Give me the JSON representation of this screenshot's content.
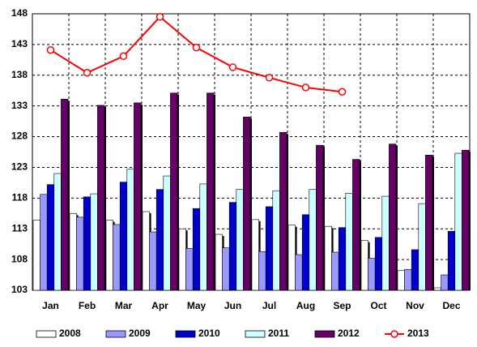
{
  "chart_data": {
    "type": "bar",
    "categories": [
      "Jan",
      "Feb",
      "Mar",
      "Apr",
      "May",
      "Jun",
      "Jul",
      "Aug",
      "Sep",
      "Oct",
      "Nov",
      "Dec"
    ],
    "series": [
      {
        "name": "2008",
        "color": "#ffffff",
        "values": [
          114.4,
          115.5,
          114.4,
          115.8,
          113.0,
          112.1,
          114.5,
          113.6,
          113.4,
          111.1,
          106.2,
          103.4
        ]
      },
      {
        "name": "2009",
        "color": "#9999ff",
        "values": [
          118.6,
          114.9,
          113.7,
          112.5,
          109.8,
          109.9,
          109.3,
          108.8,
          109.2,
          108.2,
          106.4,
          105.5
        ]
      },
      {
        "name": "2010",
        "color": "#0000cc",
        "values": [
          120.2,
          118.2,
          120.6,
          119.4,
          116.3,
          117.3,
          116.6,
          115.3,
          113.2,
          111.6,
          109.6,
          112.6
        ]
      },
      {
        "name": "2011",
        "color": "#ccffff",
        "values": [
          122.0,
          118.7,
          122.7,
          121.6,
          120.3,
          119.4,
          119.2,
          119.4,
          118.8,
          118.3,
          117.1,
          125.3
        ]
      },
      {
        "name": "2012",
        "color": "#660066",
        "values": [
          134.1,
          133.1,
          133.5,
          135.1,
          135.1,
          131.2,
          128.7,
          126.6,
          124.3,
          126.8,
          125.0,
          125.8
        ]
      },
      {
        "name": "2013",
        "color": "#ff0000",
        "type": "line",
        "values": [
          142.1,
          138.4,
          141.1,
          147.5,
          142.5,
          139.3,
          137.6,
          136.0,
          135.3,
          null,
          null,
          null
        ]
      }
    ],
    "ylim": [
      103,
      148
    ],
    "yticks": [
      103,
      108,
      113,
      118,
      123,
      128,
      133,
      138,
      143,
      148
    ],
    "grid": true,
    "legend": "bottom"
  }
}
